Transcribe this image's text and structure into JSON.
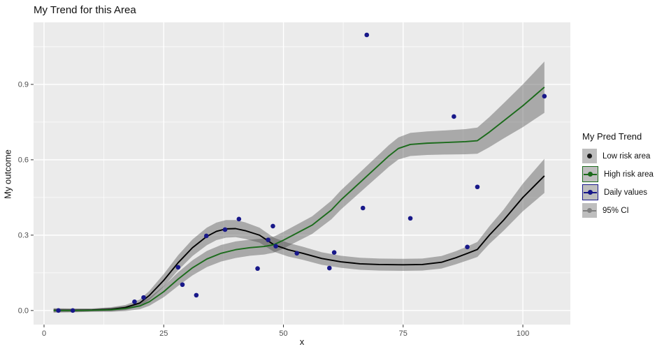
{
  "chart_data": {
    "type": "line",
    "title": "My Trend for this Area",
    "xlabel": "x",
    "ylabel": "My outcome",
    "xlim": [
      -2.19,
      109.92
    ],
    "ylim": [
      -0.056,
      1.147
    ],
    "grid": "on",
    "panel_bg": "#EBEBEB",
    "grid_color": "#FFFFFF",
    "tick_label_color": "#4D4D4D",
    "ribbon_color": "rgba(70,70,70,0.40)",
    "x_ticks": [
      {
        "v": 0,
        "label": "0"
      },
      {
        "v": 25,
        "label": "25"
      },
      {
        "v": 50,
        "label": "50"
      },
      {
        "v": 75,
        "label": "75"
      },
      {
        "v": 100,
        "label": "100"
      }
    ],
    "y_ticks": [
      {
        "v": 0.0,
        "label": "0.0"
      },
      {
        "v": 0.3,
        "label": "0.3"
      },
      {
        "v": 0.6,
        "label": "0.6"
      },
      {
        "v": 0.9,
        "label": "0.9"
      }
    ],
    "x_minor_ticks": [
      12.5,
      37.5,
      62.5,
      87.5
    ],
    "y_minor_ticks": [
      0.15,
      0.45,
      0.75,
      1.05
    ],
    "series": [
      {
        "name": "Low risk area",
        "kind": "smooth-line-with-ci",
        "color": "#000000",
        "points": [
          [
            2,
            0.001
          ],
          [
            6,
            0.001
          ],
          [
            10,
            0.002
          ],
          [
            14,
            0.005
          ],
          [
            17,
            0.012
          ],
          [
            20,
            0.03
          ],
          [
            22,
            0.06
          ],
          [
            25,
            0.12
          ],
          [
            28,
            0.19
          ],
          [
            31,
            0.25
          ],
          [
            34,
            0.295
          ],
          [
            36,
            0.315
          ],
          [
            38,
            0.325
          ],
          [
            40,
            0.326
          ],
          [
            42,
            0.318
          ],
          [
            45,
            0.3
          ],
          [
            48,
            0.262
          ],
          [
            51,
            0.242
          ],
          [
            54,
            0.228
          ],
          [
            58,
            0.207
          ],
          [
            62,
            0.194
          ],
          [
            66,
            0.186
          ],
          [
            70,
            0.183
          ],
          [
            75,
            0.182
          ],
          [
            79,
            0.183
          ],
          [
            83,
            0.192
          ],
          [
            86,
            0.21
          ],
          [
            88.5,
            0.228
          ],
          [
            90.5,
            0.243
          ],
          [
            93,
            0.3
          ],
          [
            96,
            0.36
          ],
          [
            100,
            0.45
          ],
          [
            104.5,
            0.536
          ]
        ],
        "ci_halfwidth": [
          0.008,
          0.007,
          0.006,
          0.008,
          0.01,
          0.014,
          0.018,
          0.025,
          0.03,
          0.033,
          0.035,
          0.035,
          0.035,
          0.034,
          0.033,
          0.03,
          0.028,
          0.027,
          0.026,
          0.025,
          0.024,
          0.024,
          0.024,
          0.024,
          0.024,
          0.025,
          0.026,
          0.028,
          0.03,
          0.035,
          0.042,
          0.055,
          0.068
        ]
      },
      {
        "name": "High risk area",
        "kind": "smooth-line-with-ci",
        "color": "#1B6B1B",
        "points": [
          [
            2,
            0.0
          ],
          [
            6,
            0.0
          ],
          [
            10,
            0.001
          ],
          [
            14,
            0.003
          ],
          [
            17,
            0.008
          ],
          [
            20,
            0.018
          ],
          [
            22,
            0.035
          ],
          [
            25,
            0.075
          ],
          [
            28,
            0.125
          ],
          [
            31,
            0.17
          ],
          [
            34,
            0.205
          ],
          [
            37,
            0.228
          ],
          [
            40,
            0.242
          ],
          [
            43,
            0.25
          ],
          [
            46,
            0.255
          ],
          [
            48,
            0.262
          ],
          [
            50,
            0.28
          ],
          [
            53,
            0.31
          ],
          [
            56,
            0.34
          ],
          [
            58,
            0.37
          ],
          [
            60,
            0.4
          ],
          [
            62,
            0.44
          ],
          [
            64,
            0.475
          ],
          [
            66,
            0.51
          ],
          [
            68,
            0.545
          ],
          [
            70,
            0.58
          ],
          [
            72,
            0.615
          ],
          [
            74,
            0.645
          ],
          [
            76.5,
            0.661
          ],
          [
            80,
            0.666
          ],
          [
            84,
            0.669
          ],
          [
            88,
            0.672
          ],
          [
            90.5,
            0.676
          ],
          [
            93,
            0.71
          ],
          [
            96,
            0.755
          ],
          [
            100,
            0.815
          ],
          [
            104.5,
            0.889
          ]
        ],
        "ci_halfwidth": [
          0.008,
          0.007,
          0.006,
          0.008,
          0.01,
          0.013,
          0.016,
          0.022,
          0.027,
          0.03,
          0.032,
          0.033,
          0.033,
          0.032,
          0.032,
          0.032,
          0.033,
          0.034,
          0.035,
          0.036,
          0.037,
          0.038,
          0.039,
          0.04,
          0.041,
          0.042,
          0.043,
          0.044,
          0.046,
          0.047,
          0.048,
          0.05,
          0.052,
          0.06,
          0.07,
          0.085,
          0.102
        ]
      },
      {
        "name": "Daily values",
        "kind": "scatter",
        "color": "#181889",
        "points": [
          [
            3,
            0.0
          ],
          [
            6,
            0.0
          ],
          [
            18.9,
            0.035
          ],
          [
            20.8,
            0.052
          ],
          [
            28,
            0.172
          ],
          [
            28.9,
            0.103
          ],
          [
            31.8,
            0.061
          ],
          [
            33.9,
            0.297
          ],
          [
            37.8,
            0.322
          ],
          [
            40.7,
            0.364
          ],
          [
            44.6,
            0.167
          ],
          [
            46.8,
            0.281
          ],
          [
            47.8,
            0.336
          ],
          [
            48.4,
            0.256
          ],
          [
            52.8,
            0.228
          ],
          [
            59.6,
            0.169
          ],
          [
            60.6,
            0.231
          ],
          [
            66.6,
            0.408
          ],
          [
            67.4,
            1.097
          ],
          [
            76.5,
            0.367
          ],
          [
            85.6,
            0.772
          ],
          [
            88.4,
            0.253
          ],
          [
            90.5,
            0.492
          ],
          [
            104.5,
            0.853
          ]
        ]
      }
    ]
  },
  "legend": {
    "title": "My Pred Trend",
    "key_fill": "#BEBEBE",
    "items": [
      {
        "label": "Low risk area",
        "type": "point",
        "color": "#1a1a1a",
        "border": "none"
      },
      {
        "label": "High risk area",
        "type": "line-point",
        "color": "#1B6B1B",
        "border": "#1B6B1B"
      },
      {
        "label": "Daily values",
        "type": "line-point",
        "color": "#181889",
        "border": "#181889"
      },
      {
        "label": "95% CI",
        "type": "line-point",
        "color": "#808080",
        "border": "none"
      }
    ]
  }
}
